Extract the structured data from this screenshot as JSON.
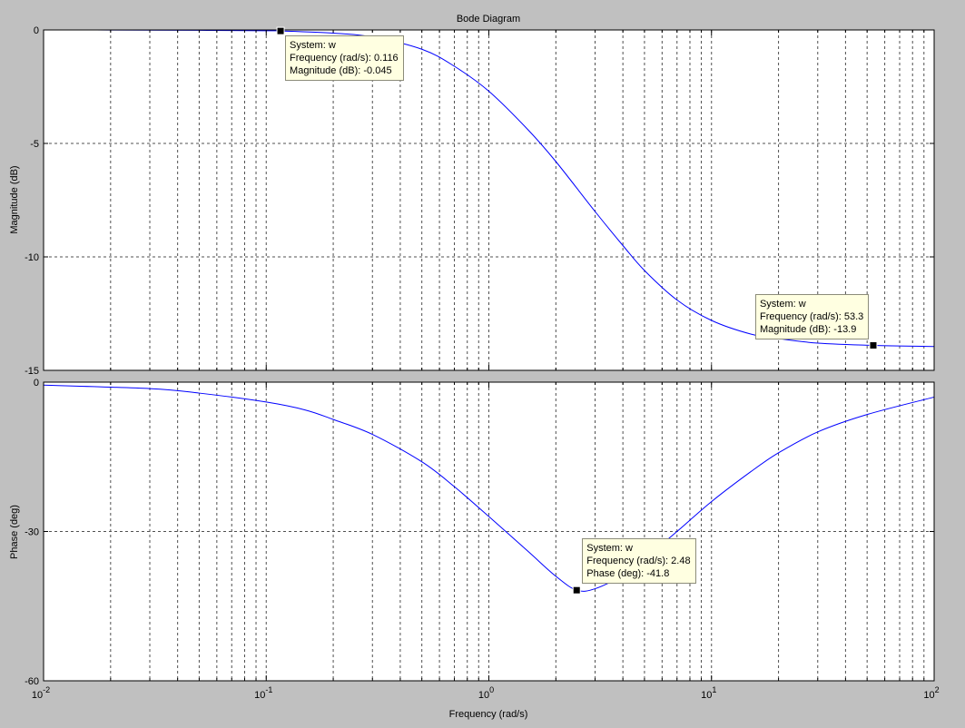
{
  "title": "Bode Diagram",
  "xlabel": "Frequency  (rad/s)",
  "chart_data": [
    {
      "type": "line",
      "title": "Bode Diagram",
      "xlabel": "Frequency  (rad/s)",
      "ylabel": "Magnitude (dB)",
      "xscale": "log",
      "xlim": [
        0.01,
        100
      ],
      "ylim": [
        -15,
        0
      ],
      "yticks": [
        0,
        -5,
        -10,
        -15
      ],
      "yticklabels": [
        "0",
        "-5",
        "-10",
        "-15"
      ],
      "grid": true,
      "series": [
        {
          "name": "w",
          "color": "#0000ff",
          "x": [
            0.01,
            0.02,
            0.05,
            0.1,
            0.116,
            0.2,
            0.3,
            0.5,
            0.7,
            1,
            1.5,
            2,
            3,
            4,
            5,
            7,
            10,
            15,
            20,
            30,
            53.3,
            100
          ],
          "y": [
            0,
            -0.003,
            -0.017,
            -0.035,
            -0.045,
            -0.14,
            -0.31,
            -0.85,
            -1.6,
            -2.7,
            -4.4,
            -5.8,
            -8.0,
            -9.5,
            -10.6,
            -11.9,
            -12.8,
            -13.4,
            -13.6,
            -13.8,
            -13.9,
            -13.95
          ]
        }
      ],
      "datatips": [
        {
          "lines": [
            "System: w",
            "Frequency (rad/s): 0.116",
            "Magnitude (dB): -0.045"
          ],
          "x": 0.116,
          "y": -0.045
        },
        {
          "lines": [
            "System: w",
            "Frequency (rad/s): 53.3",
            "Magnitude (dB): -13.9"
          ],
          "x": 53.3,
          "y": -13.9
        }
      ]
    },
    {
      "type": "line",
      "xlabel": "Frequency  (rad/s)",
      "ylabel": "Phase (deg)",
      "xscale": "log",
      "xlim": [
        0.01,
        100
      ],
      "ylim": [
        -60,
        0
      ],
      "yticks": [
        0,
        -30,
        -60
      ],
      "yticklabels": [
        "0",
        "-30",
        "-60"
      ],
      "xticks": [
        0.01,
        0.1,
        1,
        10,
        100
      ],
      "xticklabels": [
        [
          "10",
          "-2"
        ],
        [
          "10",
          "-1"
        ],
        [
          "10",
          "0"
        ],
        [
          "10",
          "1"
        ],
        [
          "10",
          "2"
        ]
      ],
      "grid": true,
      "series": [
        {
          "name": "w",
          "color": "#0000ff",
          "x": [
            0.01,
            0.03,
            0.05,
            0.1,
            0.15,
            0.2,
            0.3,
            0.5,
            0.7,
            1,
            1.5,
            2,
            2.48,
            3,
            4,
            5,
            7,
            10,
            15,
            20,
            30,
            50,
            100
          ],
          "y": [
            -0.6,
            -1.3,
            -2.2,
            -4.0,
            -5.6,
            -7.5,
            -10.5,
            -16.0,
            -21.0,
            -27.0,
            -34.0,
            -39.0,
            -41.8,
            -41.5,
            -38.8,
            -35.5,
            -30.0,
            -24.0,
            -18.0,
            -14.2,
            -10.0,
            -6.5,
            -3.0
          ]
        }
      ],
      "datatips": [
        {
          "lines": [
            "System: w",
            "Frequency (rad/s): 2.48",
            "Phase (deg): -41.8"
          ],
          "x": 2.48,
          "y": -41.8
        }
      ]
    }
  ]
}
